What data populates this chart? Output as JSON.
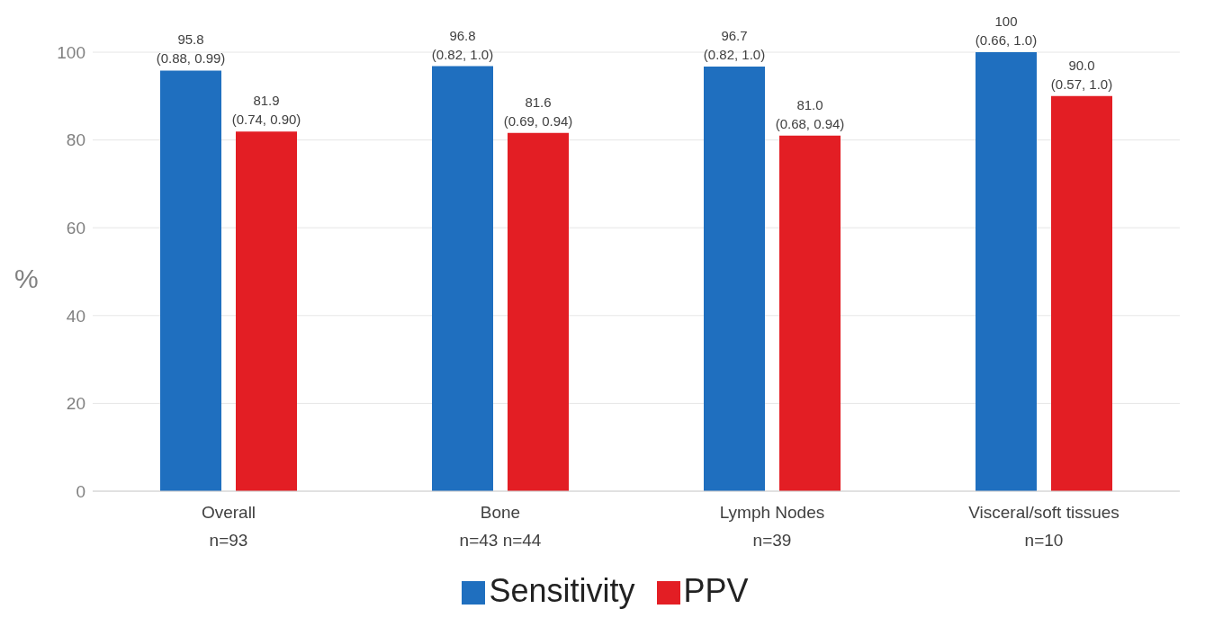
{
  "chart_data": {
    "type": "bar",
    "ylabel": "%",
    "categories": [
      "Overall\nn=93",
      "Bone\nn=43  n=44",
      "Lymph Nodes\nn=39",
      "Visceral/soft tissues\nn=10"
    ],
    "series": [
      {
        "name": "Sensitivity",
        "color": "#1f6fbf",
        "values": [
          95.8,
          96.8,
          96.7,
          100
        ],
        "value_labels": [
          "95.8\n(0.88, 0.99)",
          "96.8\n(0.82, 1.0)",
          "96.7\n(0.82, 1.0)",
          "100\n(0.66, 1.0)"
        ]
      },
      {
        "name": "PPV",
        "color": "#e31e24",
        "values": [
          81.9,
          81.6,
          81.0,
          90.0
        ],
        "value_labels": [
          "81.9\n(0.74, 0.90)",
          "81.6\n(0.69, 0.94)",
          "81.0\n(0.68, 0.94)",
          "90.0\n(0.57, 1.0)"
        ]
      }
    ],
    "ylim": [
      0,
      100
    ],
    "yticks": [
      0,
      20,
      40,
      60,
      80,
      100
    ],
    "grid": "y",
    "legend": "bottom"
  }
}
